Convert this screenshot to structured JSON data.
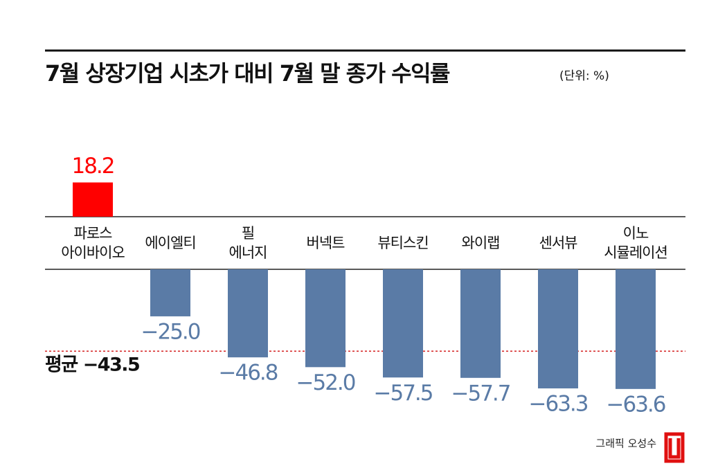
{
  "chart_data": {
    "type": "bar",
    "title": "7월 상장기업 시초가 대비 7월 말 종가 수익률",
    "subtitle": "(단위: %)",
    "categories": [
      "파로스\n아이바이오",
      "에이엘티",
      "필\n에너지",
      "버넥트",
      "뷰티스킨",
      "와이랩",
      "센서뷰",
      "이노\n시뮬레이션"
    ],
    "values": [
      18.2,
      -25.0,
      -46.8,
      -52.0,
      -57.5,
      -57.7,
      -63.3,
      -63.6
    ],
    "value_labels": [
      "18.2",
      "−25.0",
      "−46.8",
      "−52.0",
      "−57.5",
      "−57.7",
      "−63.3",
      "−63.6"
    ],
    "colors": [
      "#ff0000",
      "#5a7ba6",
      "#5a7ba6",
      "#5a7ba6",
      "#5a7ba6",
      "#5a7ba6",
      "#5a7ba6",
      "#5a7ba6"
    ],
    "ylim": [
      -65,
      20
    ],
    "average": {
      "value": -43.5,
      "label": "평균 −43.5",
      "color": "#d42020"
    },
    "credit": "그래픽 오성수"
  }
}
